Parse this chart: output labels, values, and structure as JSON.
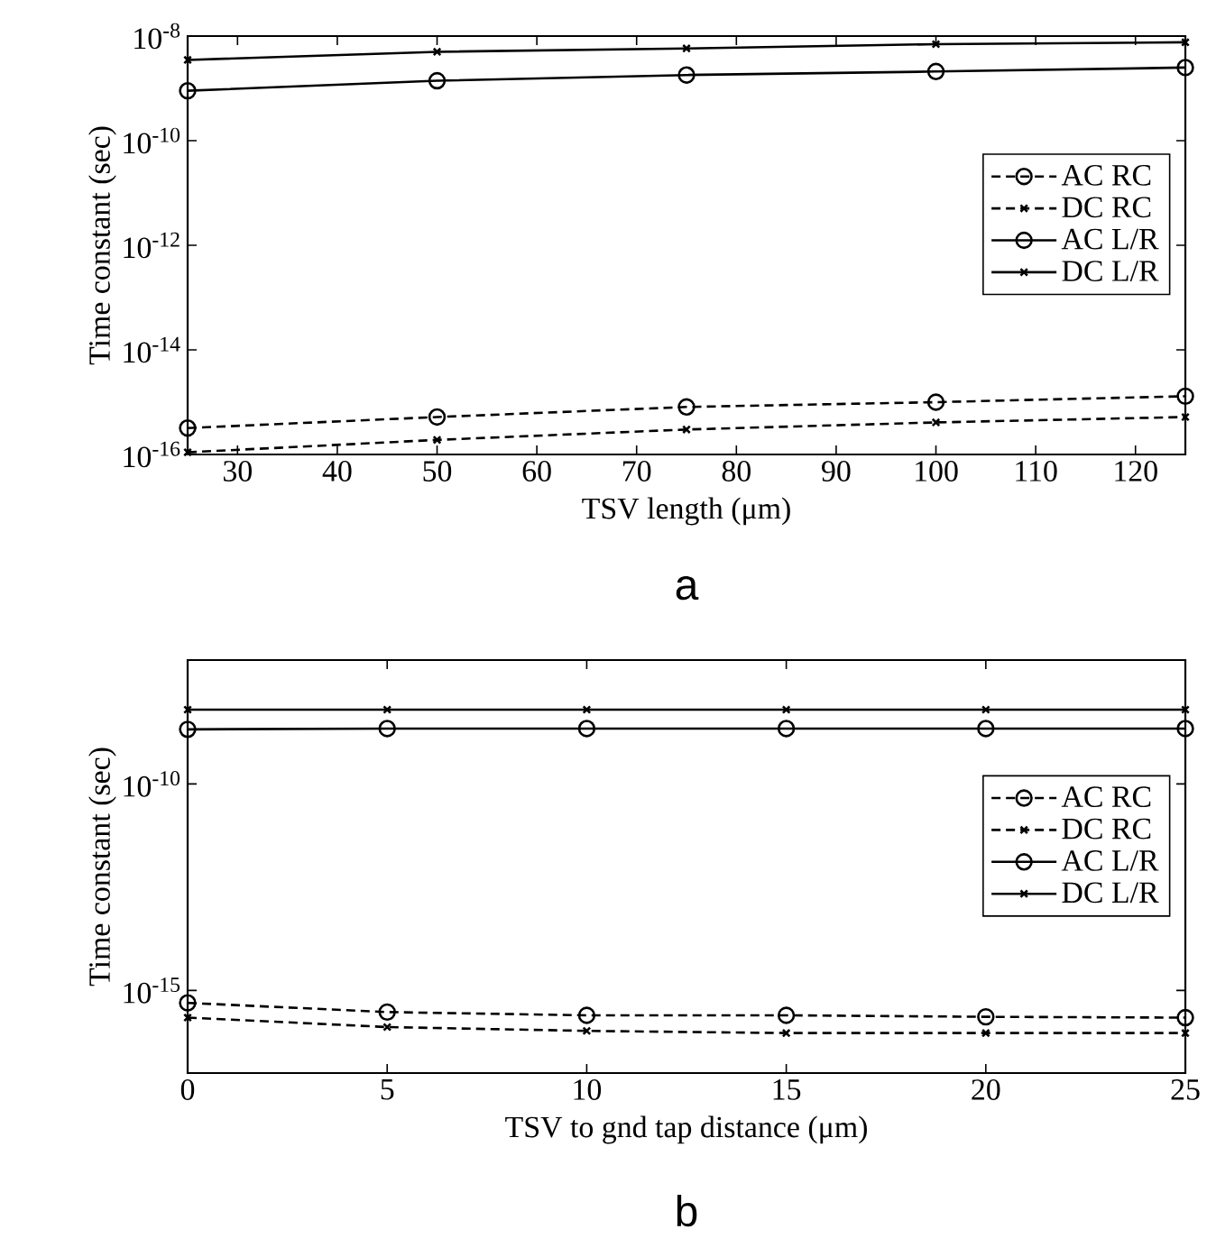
{
  "chart_data": [
    {
      "type": "line",
      "title": "a",
      "xlabel": "TSV length (μm)",
      "ylabel": "Time constant (sec)",
      "log": "y",
      "legend": "right",
      "x": [
        25,
        50,
        75,
        100,
        125
      ],
      "xlim": [
        25,
        125
      ],
      "xticks": [
        30,
        40,
        50,
        60,
        70,
        80,
        90,
        100,
        110,
        120
      ],
      "ylim": [
        1e-16,
        1e-08
      ],
      "yticks": [
        {
          "value": 1e-16,
          "label": "10$^{-16}$"
        },
        {
          "value": 1e-14,
          "label": "10$^{-14}$"
        },
        {
          "value": 1e-12,
          "label": "10$^{-12}$"
        },
        {
          "value": 1e-10,
          "label": "10$^{-10}$"
        },
        {
          "value": 1e-08,
          "label": "10$^{-8}$"
        }
      ],
      "series": [
        {
          "name": "AC RC",
          "color": "#000000",
          "marker": "circle",
          "line_style": "dashed",
          "values": [
            3.2e-16,
            5.2e-16,
            8.1e-16,
            1e-15,
            1.3e-15
          ]
        },
        {
          "name": "DC RC",
          "color": "#000000",
          "marker": "cross",
          "line_style": "dashed",
          "values": [
            1.1e-16,
            1.9e-16,
            3e-16,
            4.1e-16,
            5.2e-16
          ]
        },
        {
          "name": "AC L/R",
          "color": "#000000",
          "marker": "circle",
          "line_style": "solid",
          "values": [
            9e-10,
            1.4e-09,
            1.8e-09,
            2.1e-09,
            2.5e-09
          ]
        },
        {
          "name": "DC L/R",
          "color": "#000000",
          "marker": "cross",
          "line_style": "solid",
          "values": [
            3.5e-09,
            5e-09,
            5.8e-09,
            7e-09,
            7.6e-09
          ]
        }
      ]
    },
    {
      "type": "line",
      "title": "b",
      "xlabel": "TSV to gnd tap distance (μm)",
      "ylabel": "Time constant (sec)",
      "log": "y",
      "legend": "right",
      "x": [
        0,
        5,
        10,
        15,
        20,
        25
      ],
      "xlim": [
        0,
        25
      ],
      "xticks": [
        0,
        5,
        10,
        15,
        20,
        25
      ],
      "ylim": [
        1e-17,
        1e-07
      ],
      "yticks": [
        {
          "value": 1e-15,
          "label": "10$^{-15}$"
        },
        {
          "value": 1e-10,
          "label": "10$^{-10}$"
        }
      ],
      "series": [
        {
          "name": "AC RC",
          "color": "#000000",
          "marker": "circle",
          "line_style": "dashed",
          "values": [
            5e-16,
            3e-16,
            2.5e-16,
            2.5e-16,
            2.3e-16,
            2.2e-16
          ]
        },
        {
          "name": "DC RC",
          "color": "#000000",
          "marker": "cross",
          "line_style": "dashed",
          "values": [
            2.2e-16,
            1.3e-16,
            1.05e-16,
            9.3e-17,
            9.3e-17,
            9.3e-17
          ]
        },
        {
          "name": "AC L/R",
          "color": "#000000",
          "marker": "circle",
          "line_style": "solid",
          "values": [
            2.1e-09,
            2.2e-09,
            2.2e-09,
            2.2e-09,
            2.2e-09,
            2.2e-09
          ]
        },
        {
          "name": "DC L/R",
          "color": "#000000",
          "marker": "cross",
          "line_style": "solid",
          "values": [
            6.3e-09,
            6.3e-09,
            6.3e-09,
            6.3e-09,
            6.3e-09,
            6.3e-09
          ]
        }
      ]
    }
  ]
}
